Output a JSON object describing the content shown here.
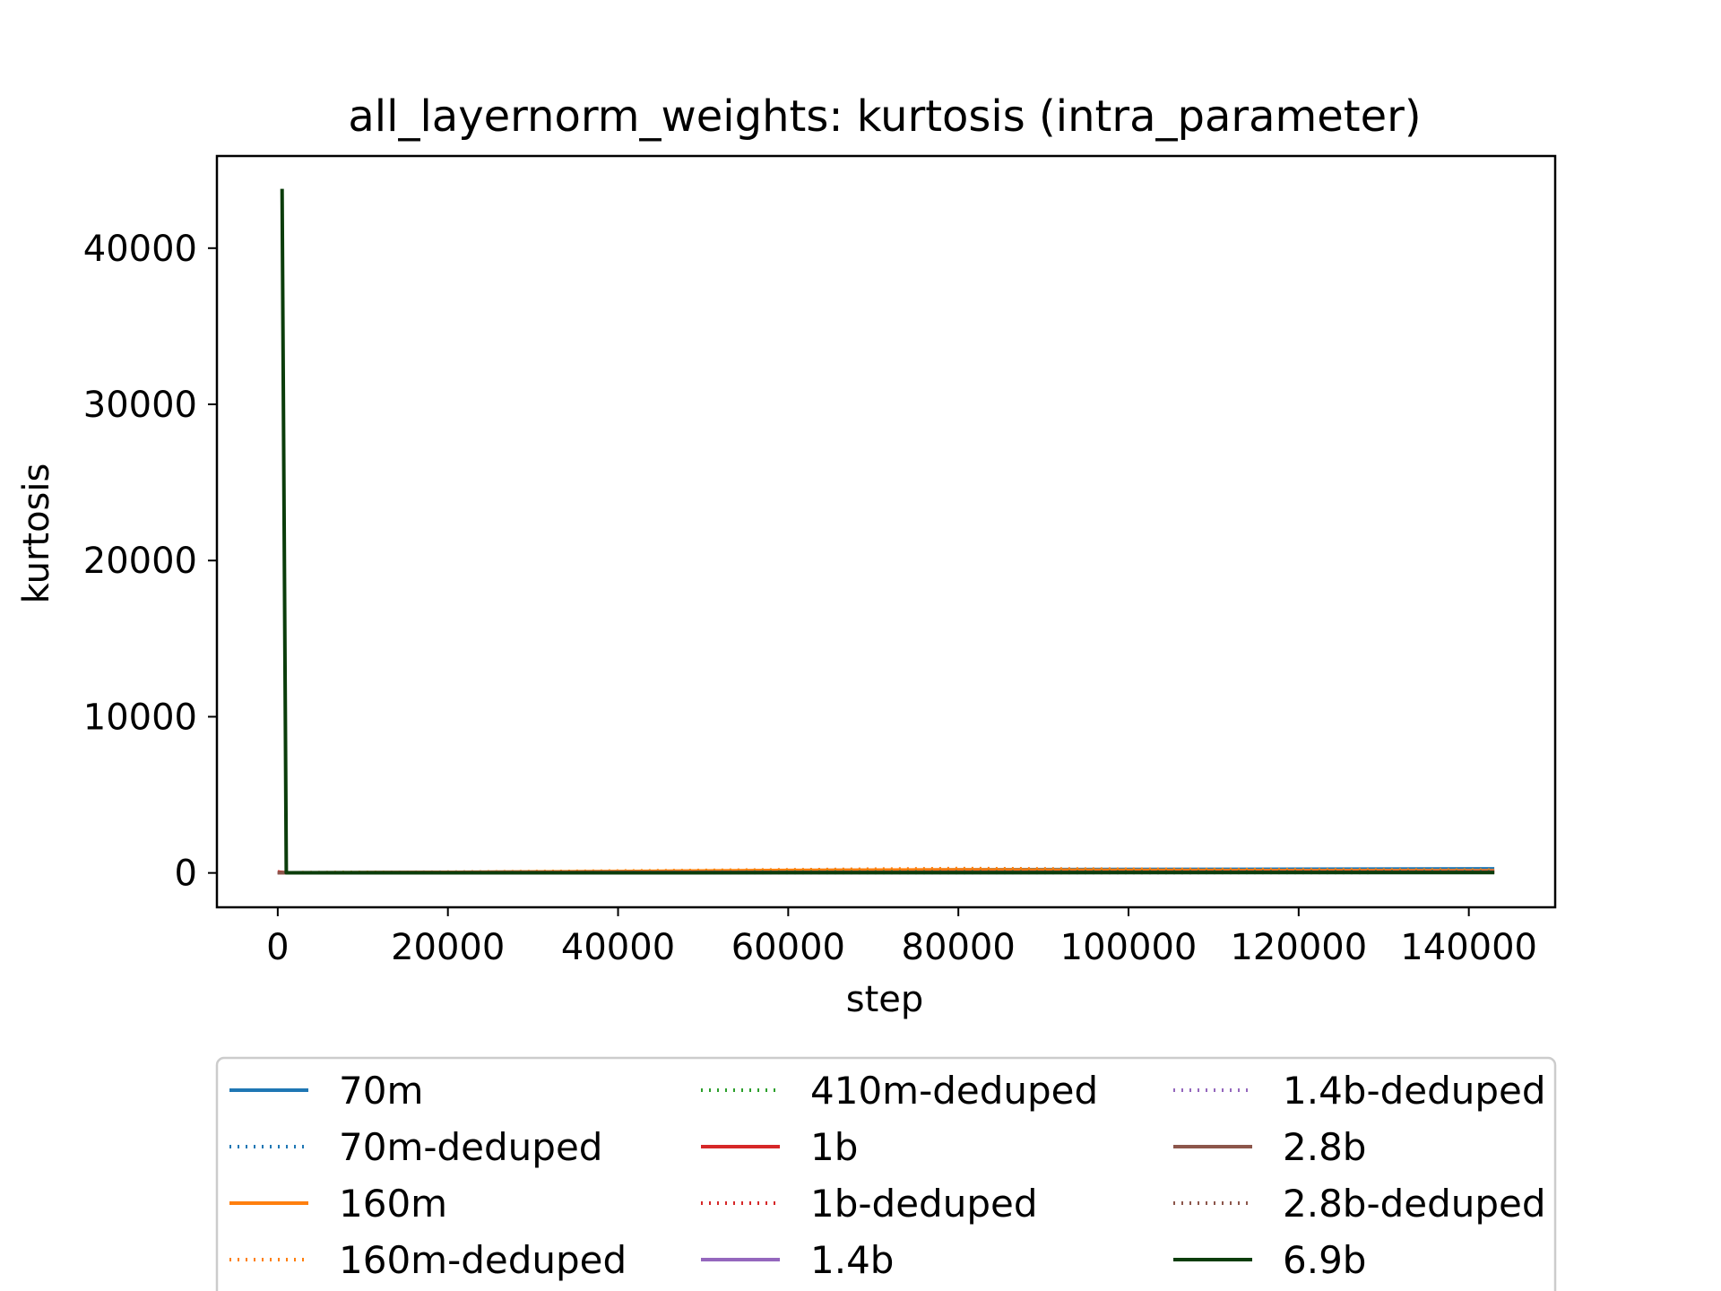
{
  "chart_data": {
    "type": "line",
    "title": "all_layernorm_weights: kurtosis (intra_parameter)",
    "xlabel": "step",
    "ylabel": "kurtosis",
    "xlim": [
      -7150,
      150150
    ],
    "ylim": [
      -2200,
      45900
    ],
    "xticks": [
      0,
      20000,
      40000,
      60000,
      80000,
      100000,
      120000,
      140000
    ],
    "yticks": [
      0,
      10000,
      20000,
      30000,
      40000
    ],
    "grid": false,
    "legend_position": "bottom",
    "legend_columns": 3,
    "series": [
      {
        "name": "70m",
        "color": "#1f77b4",
        "style": "solid",
        "x": [
          0,
          1000,
          20000,
          40000,
          60000,
          80000,
          100000,
          120000,
          143000
        ],
        "y": [
          30,
          10,
          40,
          80,
          150,
          200,
          220,
          240,
          260
        ]
      },
      {
        "name": "70m-deduped",
        "color": "#1f77b4",
        "style": "dotted",
        "x": [
          0,
          1000,
          20000,
          40000,
          60000,
          80000,
          100000,
          120000,
          143000
        ],
        "y": [
          25,
          10,
          35,
          70,
          130,
          180,
          200,
          210,
          220
        ]
      },
      {
        "name": "160m",
        "color": "#ff7f0e",
        "style": "solid",
        "x": [
          0,
          1000,
          20000,
          40000,
          60000,
          80000,
          100000,
          120000,
          143000
        ],
        "y": [
          20,
          10,
          40,
          90,
          160,
          200,
          170,
          150,
          140
        ]
      },
      {
        "name": "160m-deduped",
        "color": "#ff7f0e",
        "style": "dotted",
        "x": [
          0,
          1000,
          20000,
          40000,
          60000,
          80000,
          100000,
          120000,
          143000
        ],
        "y": [
          20,
          10,
          50,
          120,
          200,
          280,
          240,
          200,
          180
        ]
      },
      {
        "name": "410m-deduped",
        "color": "#2ca02c",
        "style": "dotted",
        "x": [
          0,
          1000,
          20000,
          40000,
          60000,
          80000,
          100000,
          120000,
          143000
        ],
        "y": [
          15,
          10,
          20,
          40,
          60,
          80,
          90,
          95,
          100
        ]
      },
      {
        "name": "1b",
        "color": "#d62728",
        "style": "solid",
        "x": [
          0,
          1000,
          20000,
          40000,
          60000,
          80000,
          100000,
          120000,
          143000
        ],
        "y": [
          50,
          10,
          15,
          25,
          40,
          50,
          55,
          60,
          65
        ]
      },
      {
        "name": "1b-deduped",
        "color": "#d62728",
        "style": "dotted",
        "x": [
          0,
          1000,
          20000,
          40000,
          60000,
          80000,
          100000,
          120000,
          143000
        ],
        "y": [
          60,
          10,
          15,
          25,
          35,
          45,
          50,
          55,
          60
        ]
      },
      {
        "name": "1.4b",
        "color": "#9467bd",
        "style": "solid",
        "x": [
          0,
          1000,
          20000,
          40000,
          60000,
          80000,
          100000,
          120000,
          143000
        ],
        "y": [
          10,
          10,
          15,
          20,
          30,
          35,
          40,
          45,
          50
        ]
      },
      {
        "name": "1.4b-deduped",
        "color": "#9467bd",
        "style": "dotted",
        "x": [
          0,
          1000,
          20000,
          40000,
          60000,
          80000,
          100000,
          120000,
          143000
        ],
        "y": [
          10,
          10,
          15,
          20,
          25,
          30,
          35,
          40,
          45
        ]
      },
      {
        "name": "2.8b",
        "color": "#8c564b",
        "style": "solid",
        "x": [
          0,
          1000,
          20000,
          40000,
          60000,
          80000,
          100000,
          120000,
          143000
        ],
        "y": [
          10,
          10,
          12,
          18,
          25,
          30,
          35,
          38,
          40
        ]
      },
      {
        "name": "2.8b-deduped",
        "color": "#8c564b",
        "style": "dotted",
        "x": [
          0,
          1000,
          20000,
          40000,
          60000,
          80000,
          100000,
          120000,
          143000
        ],
        "y": [
          10,
          10,
          12,
          16,
          22,
          28,
          32,
          35,
          38
        ]
      },
      {
        "name": "6.9b",
        "color": "#0b3d0b",
        "style": "solid",
        "x": [
          512,
          1000,
          20000,
          40000,
          60000,
          80000,
          100000,
          120000,
          143000
        ],
        "y": [
          43800,
          10,
          10,
          12,
          15,
          18,
          20,
          22,
          25
        ]
      }
    ]
  }
}
